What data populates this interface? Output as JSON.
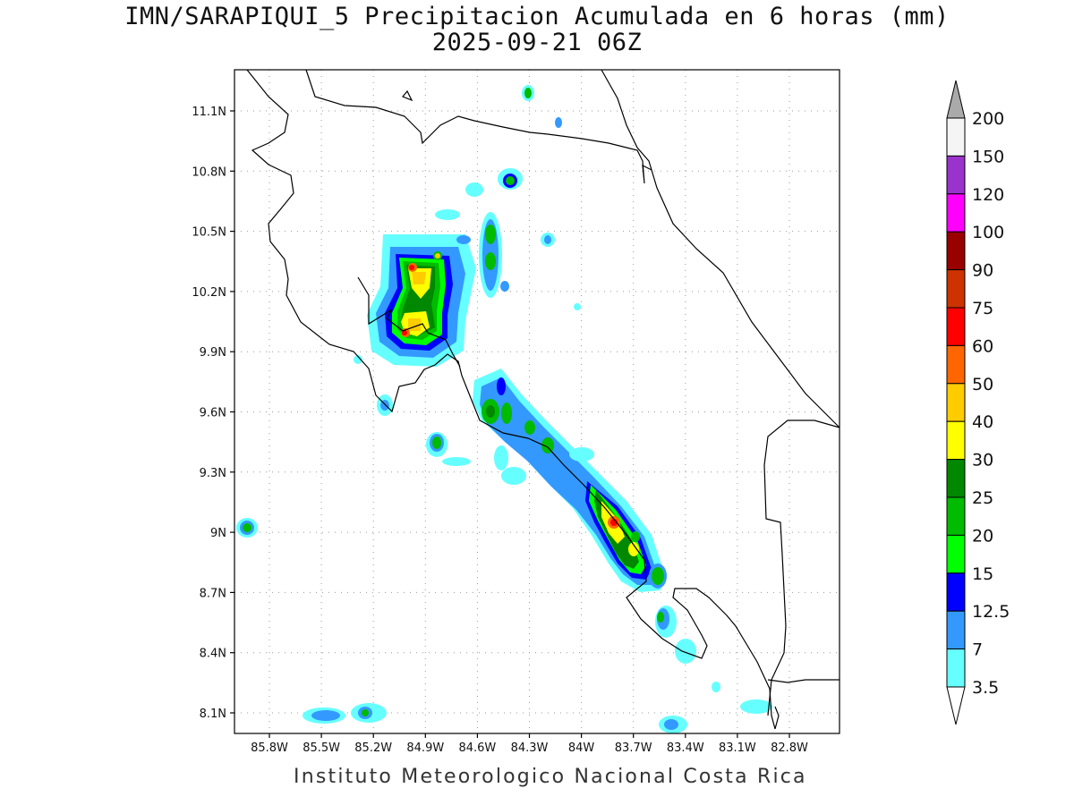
{
  "title": {
    "line1": "IMN/SARAPIQUI_5 Precipitacion Acumulada en 6 horas (mm)",
    "line2": "2025-09-21 06Z"
  },
  "footer": "Instituto Meteorologico Nacional Costa Rica",
  "map": {
    "lon_range": [
      -86.0,
      -83.0
    ],
    "lat_range": [
      8.0,
      11.2
    ],
    "lat_ticks": [
      "11.1N",
      "10.8N",
      "10.5N",
      "10.2N",
      "9.9N",
      "9.6N",
      "9.3N",
      "9N",
      "8.7N",
      "8.4N",
      "8.1N"
    ],
    "lon_ticks": [
      "85.8W",
      "85.5W",
      "85.2W",
      "84.9W",
      "84.6W",
      "84.3W",
      "84W",
      "83.7W",
      "83.4W",
      "83.1W",
      "82.8W"
    ],
    "grid": "dotted"
  },
  "colorbar": {
    "labels": [
      "200",
      "150",
      "120",
      "100",
      "90",
      "75",
      "60",
      "50",
      "40",
      "30",
      "25",
      "20",
      "15",
      "12.5",
      "7",
      "3.5"
    ],
    "colors": [
      "#f5f5f5",
      "#9933cc",
      "#ff00ff",
      "#990000",
      "#cc3300",
      "#ff0000",
      "#ff6600",
      "#ffcc00",
      "#ffff00",
      "#008800",
      "#00bb00",
      "#00ff00",
      "#0000ff",
      "#3399ff",
      "#66ffff"
    ],
    "over_color": "#aaaaaa",
    "under_color": "#ffffff"
  }
}
